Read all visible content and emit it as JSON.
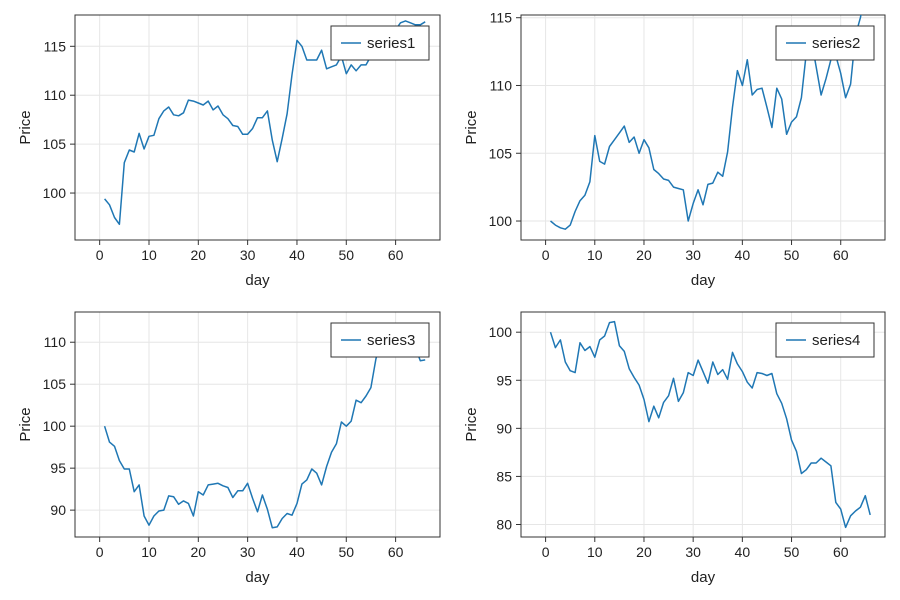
{
  "chart_data": [
    {
      "type": "line",
      "xlabel": "day",
      "ylabel": "Price",
      "xlim": [
        -5,
        69
      ],
      "ylim": [
        95.2,
        118.2
      ],
      "xticks": [
        0,
        10,
        20,
        30,
        40,
        50,
        60
      ],
      "yticks": [
        100,
        105,
        110,
        115
      ],
      "grid": true,
      "legend_position": "top-right",
      "line_color": "#1f77b4",
      "series": [
        {
          "name": "series1",
          "x": [
            1,
            2,
            3,
            4,
            5,
            6,
            7,
            8,
            9,
            10,
            11,
            12,
            13,
            14,
            15,
            16,
            17,
            18,
            19,
            20,
            21,
            22,
            23,
            24,
            25,
            26,
            27,
            28,
            29,
            30,
            31,
            32,
            33,
            34,
            35,
            36,
            37,
            38,
            39,
            40,
            41,
            42,
            43,
            44,
            45,
            46,
            47,
            48,
            49,
            50,
            51,
            52,
            53,
            54,
            55,
            56,
            57,
            58,
            59,
            60,
            61,
            62,
            63,
            64,
            65,
            66
          ],
          "values": [
            99.4,
            98.8,
            97.5,
            96.8,
            103.1,
            104.4,
            104.2,
            106.1,
            104.5,
            105.8,
            105.9,
            107.6,
            108.4,
            108.8,
            108.0,
            107.9,
            108.2,
            109.5,
            109.4,
            109.2,
            109.0,
            109.4,
            108.5,
            108.9,
            108.0,
            107.6,
            106.9,
            106.8,
            106.0,
            106.0,
            106.6,
            107.7,
            107.7,
            108.4,
            105.4,
            103.2,
            105.6,
            108.1,
            112.1,
            115.6,
            115.0,
            113.6,
            113.6,
            113.6,
            114.6,
            112.7,
            112.9,
            113.1,
            114.0,
            112.2,
            113.1,
            112.5,
            113.1,
            113.1,
            114.0,
            114.4,
            115.6,
            116.4,
            116.5,
            116.7,
            117.4,
            117.6,
            117.4,
            117.2,
            117.2,
            117.5
          ]
        }
      ]
    },
    {
      "type": "line",
      "xlabel": "day",
      "ylabel": "Price",
      "xlim": [
        -5,
        69
      ],
      "ylim": [
        98.6,
        115.2
      ],
      "xticks": [
        0,
        10,
        20,
        30,
        40,
        50,
        60
      ],
      "yticks": [
        100,
        105,
        110,
        115
      ],
      "grid": true,
      "legend_position": "top-right",
      "line_color": "#1f77b4",
      "series": [
        {
          "name": "series2",
          "x": [
            1,
            2,
            3,
            4,
            5,
            6,
            7,
            8,
            9,
            10,
            11,
            12,
            13,
            14,
            15,
            16,
            17,
            18,
            19,
            20,
            21,
            22,
            23,
            24,
            25,
            26,
            27,
            28,
            29,
            30,
            31,
            32,
            33,
            34,
            35,
            36,
            37,
            38,
            39,
            40,
            41,
            42,
            43,
            44,
            45,
            46,
            47,
            48,
            49,
            50,
            51,
            52,
            53,
            54,
            55,
            56,
            57,
            58,
            59,
            60,
            61,
            62,
            63,
            64,
            65,
            66
          ],
          "values": [
            100.0,
            99.7,
            99.5,
            99.4,
            99.7,
            100.7,
            101.5,
            101.9,
            102.9,
            106.3,
            104.4,
            104.2,
            105.5,
            106.0,
            106.5,
            107.0,
            105.8,
            106.2,
            105.0,
            106.0,
            105.4,
            103.8,
            103.5,
            103.1,
            103.0,
            102.5,
            102.4,
            102.3,
            100.0,
            101.3,
            102.3,
            101.2,
            102.7,
            102.8,
            103.6,
            103.3,
            105.1,
            108.4,
            111.1,
            110.0,
            111.9,
            109.3,
            109.7,
            109.8,
            108.4,
            106.9,
            109.8,
            109.0,
            106.4,
            107.3,
            107.7,
            109.1,
            112.4,
            113.4,
            111.4,
            109.3,
            110.5,
            111.9,
            112.2,
            110.9,
            109.1,
            110.1,
            113.7,
            115.0,
            116.8,
            117.2
          ]
        }
      ]
    },
    {
      "type": "line",
      "xlabel": "day",
      "ylabel": "Price",
      "xlim": [
        -5,
        69
      ],
      "ylim": [
        86.8,
        113.6
      ],
      "xticks": [
        0,
        10,
        20,
        30,
        40,
        50,
        60
      ],
      "yticks": [
        90,
        95,
        100,
        105,
        110
      ],
      "grid": true,
      "legend_position": "top-right",
      "line_color": "#1f77b4",
      "series": [
        {
          "name": "series3",
          "x": [
            1,
            2,
            3,
            4,
            5,
            6,
            7,
            8,
            9,
            10,
            11,
            12,
            13,
            14,
            15,
            16,
            17,
            18,
            19,
            20,
            21,
            22,
            23,
            24,
            25,
            26,
            27,
            28,
            29,
            30,
            31,
            32,
            33,
            34,
            35,
            36,
            37,
            38,
            39,
            40,
            41,
            42,
            43,
            44,
            45,
            46,
            47,
            48,
            49,
            50,
            51,
            52,
            53,
            54,
            55,
            56,
            57,
            58,
            59,
            60,
            61,
            62,
            63,
            64,
            65,
            66
          ],
          "values": [
            100.0,
            98.1,
            97.6,
            95.9,
            94.9,
            94.9,
            92.2,
            93.0,
            89.3,
            88.2,
            89.3,
            89.9,
            90.0,
            91.7,
            91.6,
            90.7,
            91.1,
            90.8,
            89.3,
            92.2,
            91.8,
            93.0,
            93.1,
            93.2,
            92.9,
            92.7,
            91.5,
            92.3,
            92.3,
            93.2,
            91.4,
            89.8,
            91.8,
            90.1,
            87.9,
            88.0,
            89.0,
            89.6,
            89.4,
            90.8,
            93.1,
            93.6,
            94.9,
            94.4,
            93.0,
            95.2,
            96.9,
            97.9,
            100.5,
            100.0,
            100.6,
            103.1,
            102.8,
            103.6,
            104.6,
            108.0,
            110.0,
            110.3,
            110.1,
            111.1,
            111.3,
            111.6,
            111.2,
            109.4,
            107.8,
            107.9
          ]
        }
      ]
    },
    {
      "type": "line",
      "xlabel": "day",
      "ylabel": "Price",
      "xlim": [
        -5,
        69
      ],
      "ylim": [
        78.7,
        102.1
      ],
      "xticks": [
        0,
        10,
        20,
        30,
        40,
        50,
        60
      ],
      "yticks": [
        80,
        85,
        90,
        95,
        100
      ],
      "grid": true,
      "legend_position": "top-right",
      "line_color": "#1f77b4",
      "series": [
        {
          "name": "series4",
          "x": [
            1,
            2,
            3,
            4,
            5,
            6,
            7,
            8,
            9,
            10,
            11,
            12,
            13,
            14,
            15,
            16,
            17,
            18,
            19,
            20,
            21,
            22,
            23,
            24,
            25,
            26,
            27,
            28,
            29,
            30,
            31,
            32,
            33,
            34,
            35,
            36,
            37,
            38,
            39,
            40,
            41,
            42,
            43,
            44,
            45,
            46,
            47,
            48,
            49,
            50,
            51,
            52,
            53,
            54,
            55,
            56,
            57,
            58,
            59,
            60,
            61,
            62,
            63,
            64,
            65,
            66
          ],
          "values": [
            100.0,
            98.4,
            99.2,
            96.9,
            96.0,
            95.8,
            98.9,
            98.1,
            98.5,
            97.4,
            99.2,
            99.6,
            101.0,
            101.1,
            98.6,
            98.0,
            96.2,
            95.3,
            94.5,
            93.0,
            90.7,
            92.3,
            91.1,
            92.7,
            93.4,
            95.2,
            92.8,
            93.7,
            95.8,
            95.5,
            97.1,
            95.9,
            94.7,
            96.9,
            95.6,
            96.1,
            95.1,
            97.9,
            96.7,
            95.9,
            94.8,
            94.2,
            95.8,
            95.7,
            95.5,
            95.7,
            93.6,
            92.6,
            91.0,
            88.8,
            87.6,
            85.3,
            85.7,
            86.4,
            86.4,
            86.9,
            86.5,
            86.1,
            82.3,
            81.6,
            79.7,
            80.9,
            81.4,
            81.8,
            83.0,
            81.0
          ]
        }
      ]
    }
  ]
}
